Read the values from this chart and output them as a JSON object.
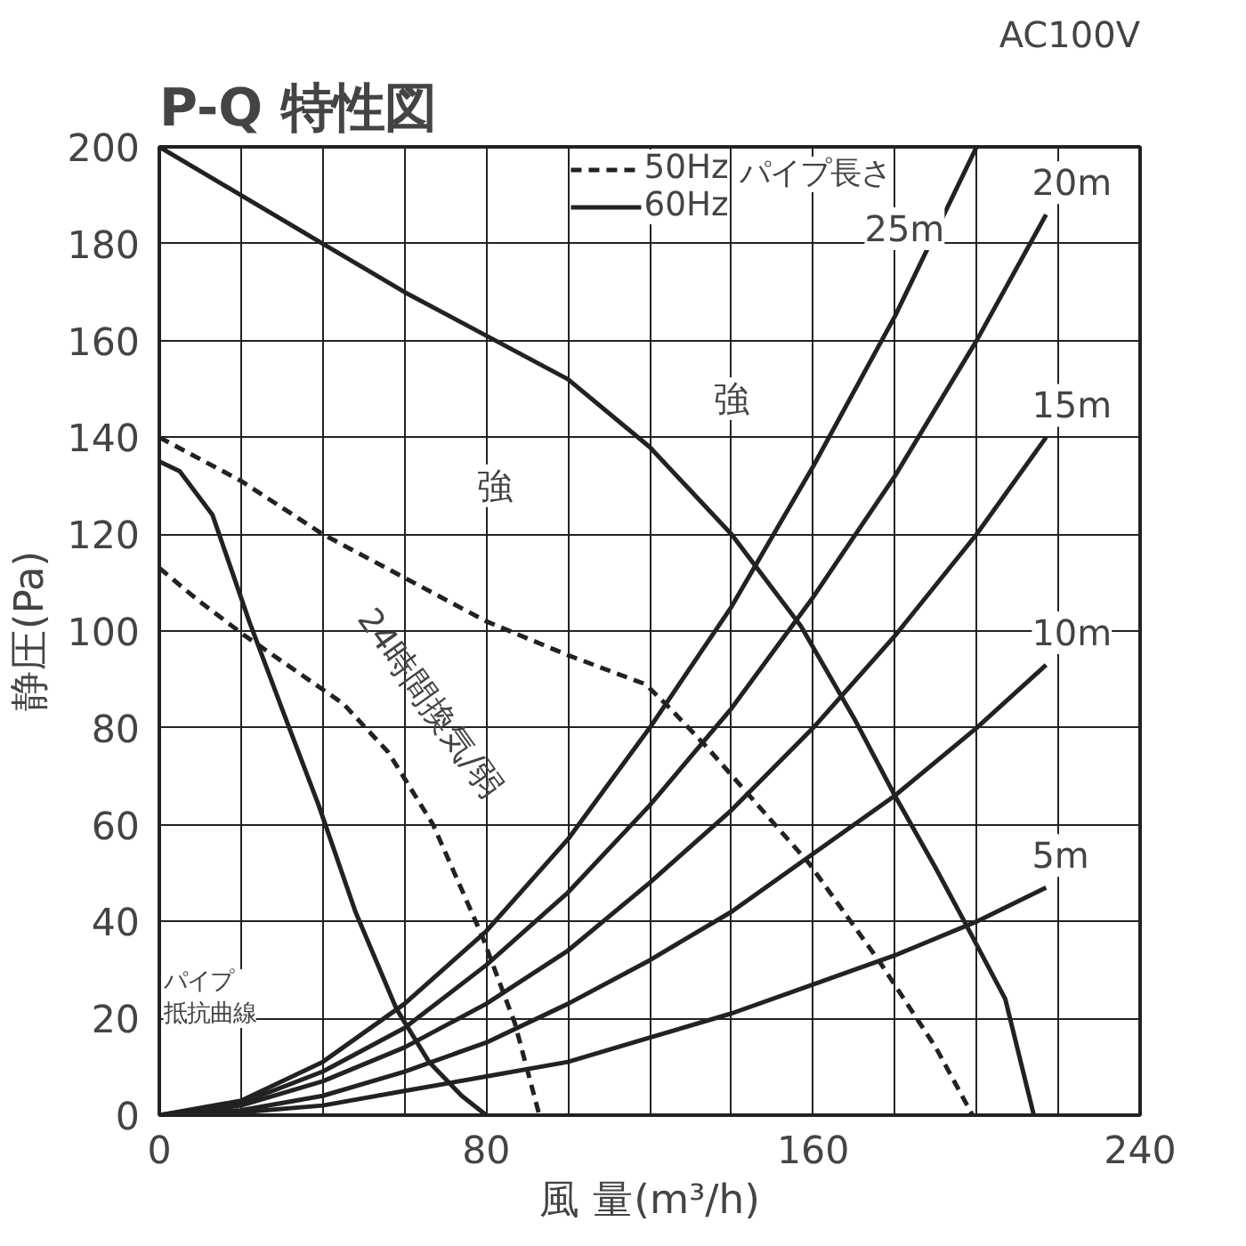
{
  "chart_data": {
    "type": "line",
    "title": "P-Q 特性図",
    "xlabel": "風 量(m³/h)",
    "ylabel": "静圧(Pa)",
    "xlim": [
      0,
      240
    ],
    "ylim": [
      0,
      200
    ],
    "xticks": [
      0,
      {
        "value": 20,
        "label": null
      },
      {
        "value": 40,
        "label": null
      },
      {
        "value": 60,
        "label": null
      },
      80,
      {
        "value": 100,
        "label": null
      },
      {
        "value": 120,
        "label": null
      },
      {
        "value": 140,
        "label": null
      },
      160,
      {
        "value": 180,
        "label": null
      },
      {
        "value": 200,
        "label": null
      },
      {
        "value": 220,
        "label": null
      },
      240
    ],
    "yticks": [
      0,
      20,
      40,
      60,
      80,
      100,
      120,
      140,
      160,
      180,
      200
    ],
    "grid": true,
    "legend": "top",
    "marker": "none",
    "series": [
      {
        "name": "50Hz",
        "color": "#222222",
        "line_style": "dashed",
        "x": [
          0,
          20,
          40,
          60,
          80,
          100,
          119,
          125,
          134,
          159,
          176,
          190,
          199
        ],
        "values": [
          140,
          131,
          120,
          111,
          102,
          95,
          89,
          84,
          76,
          52,
          32,
          14,
          0
        ]
      },
      {
        "name": "60Hz",
        "color": "#222222",
        "line_style": "solid",
        "x": [
          0,
          20,
          40,
          60,
          80,
          100,
          120,
          130,
          140,
          157,
          170,
          180,
          190,
          197,
          207,
          214
        ],
        "values": [
          200,
          190,
          180,
          170,
          161,
          152,
          138,
          129,
          120,
          101,
          82,
          66,
          51,
          40,
          24,
          0
        ]
      },
      {
        "color": "#222222",
        "line_style": "solid",
        "x": [
          0,
          5,
          13,
          22,
          30,
          39,
          48,
          58,
          66,
          74,
          80
        ],
        "values": [
          135,
          133,
          124,
          102,
          84,
          64,
          42,
          22,
          11,
          4,
          0
        ]
      },
      {
        "color": "#222222",
        "line_style": "dashed",
        "x": [
          0,
          10,
          21,
          33,
          45,
          56,
          67,
          79,
          87,
          93
        ],
        "values": [
          113,
          106,
          99,
          92,
          85,
          75,
          60,
          37,
          19,
          0
        ]
      },
      {
        "name": "25m",
        "color": "#222222",
        "line_style": "solid",
        "x": [
          0,
          20,
          40,
          60,
          80,
          100,
          120,
          140,
          160,
          180,
          200
        ],
        "values": [
          0,
          3,
          11,
          23,
          38,
          57,
          80,
          105,
          134,
          165,
          200
        ]
      },
      {
        "name": "20m",
        "color": "#222222",
        "line_style": "solid",
        "x": [
          0,
          20,
          40,
          60,
          80,
          100,
          120,
          140,
          160,
          180,
          200,
          217
        ],
        "values": [
          0,
          2.5,
          9,
          18,
          31,
          46,
          64,
          84,
          107,
          132,
          160,
          186
        ]
      },
      {
        "name": "15m",
        "color": "#222222",
        "line_style": "solid",
        "x": [
          0,
          20,
          40,
          60,
          80,
          100,
          120,
          140,
          160,
          180,
          200,
          217
        ],
        "values": [
          0,
          2,
          7,
          14,
          23,
          34,
          48,
          63,
          80,
          99,
          120,
          140
        ]
      },
      {
        "name": "10m",
        "color": "#222222",
        "line_style": "solid",
        "x": [
          0,
          20,
          40,
          60,
          80,
          100,
          120,
          140,
          160,
          180,
          200,
          217
        ],
        "values": [
          0,
          1,
          4,
          9,
          15,
          23,
          32,
          42,
          54,
          66,
          80,
          93
        ]
      },
      {
        "name": "5m",
        "color": "#222222",
        "line_style": "solid",
        "x": [
          0,
          20,
          40,
          60,
          80,
          100,
          120,
          140,
          160,
          180,
          200,
          217
        ],
        "values": [
          0,
          0.6,
          2,
          5,
          8,
          11,
          16,
          21,
          27,
          33,
          40,
          47
        ]
      }
    ],
    "annotations": [
      "AC100V",
      "パイプ長さ",
      {
        "text": "強",
        "x": 140,
        "y": 148
      },
      {
        "text": "強",
        "x": 82,
        "y": 130
      },
      "24時間換気/弱",
      "パイプ抵抗曲線"
    ]
  }
}
